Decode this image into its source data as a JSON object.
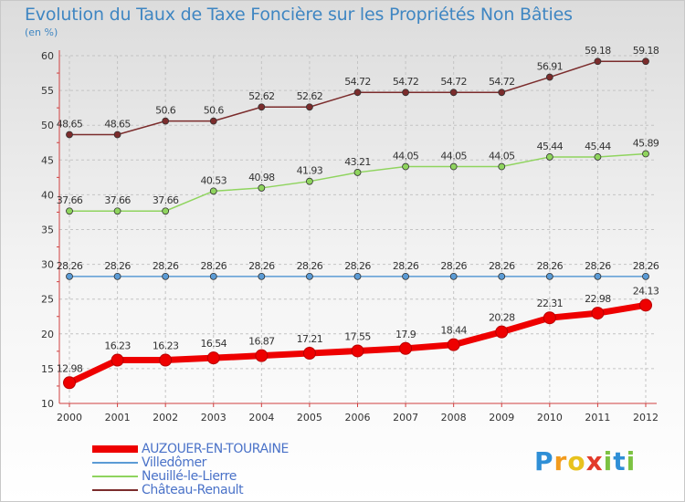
{
  "title": "Evolution du Taux de Taxe Foncière sur les Propriétés Non Bâties",
  "unit_label": "(en %)",
  "logo_letters": [
    {
      "ch": "P",
      "color": "#2f8fd6"
    },
    {
      "ch": "r",
      "color": "#f29b1d"
    },
    {
      "ch": "o",
      "color": "#e8c21d"
    },
    {
      "ch": "x",
      "color": "#e23a2a"
    },
    {
      "ch": "i",
      "color": "#7cc242"
    },
    {
      "ch": "t",
      "color": "#2f8fd6"
    },
    {
      "ch": "i",
      "color": "#7cc242"
    }
  ],
  "chart_data": {
    "type": "line",
    "title": "Evolution du Taux de Taxe Foncière sur les Propriétés Non Bâties",
    "ylabel": "(en %)",
    "xlabel": "",
    "ylim": [
      10,
      60
    ],
    "yticks": [
      10,
      15,
      20,
      25,
      30,
      35,
      40,
      45,
      50,
      55,
      60
    ],
    "grid": true,
    "legend_position": "bottom-left",
    "x": [
      "2000",
      "2001",
      "2002",
      "2003",
      "2004",
      "2005",
      "2006",
      "2007",
      "2008",
      "2009",
      "2010",
      "2011",
      "2012"
    ],
    "series": [
      {
        "name": "AUZOUER-EN-TOURAINE",
        "color": "#ee0000",
        "emphasis": true,
        "values": [
          12.98,
          16.23,
          16.23,
          16.54,
          16.87,
          17.21,
          17.55,
          17.9,
          18.44,
          20.28,
          22.31,
          22.98,
          24.13
        ],
        "labels": [
          "12.98",
          "16.23",
          "16.23",
          "16.54",
          "16.87",
          "17.21",
          "17.55",
          "17.9",
          "18.44",
          "20.28",
          "22.31",
          "22.98",
          "24.13"
        ]
      },
      {
        "name": "Villedômer",
        "color": "#5b9bd5",
        "emphasis": false,
        "values": [
          28.26,
          28.26,
          28.26,
          28.26,
          28.26,
          28.26,
          28.26,
          28.26,
          28.26,
          28.26,
          28.26,
          28.26,
          28.26
        ],
        "labels": [
          "28.26",
          "28.26",
          "28.26",
          "28.26",
          "28.26",
          "28.26",
          "28.26",
          "28.26",
          "28.26",
          "28.26",
          "28.26",
          "28.26",
          "28.26"
        ]
      },
      {
        "name": "Neuillé-le-Lierre",
        "color": "#8fd45e",
        "emphasis": false,
        "values": [
          37.66,
          37.66,
          37.66,
          40.53,
          40.98,
          41.93,
          43.21,
          44.05,
          44.05,
          44.05,
          45.44,
          45.44,
          45.89
        ],
        "labels": [
          "37.66",
          "37.66",
          "37.66",
          "40.53",
          "40.98",
          "41.93",
          "43.21",
          "44.05",
          "44.05",
          "44.05",
          "45.44",
          "45.44",
          "45.89"
        ]
      },
      {
        "name": "Château-Renault",
        "color": "#7b2c2c",
        "emphasis": false,
        "values": [
          48.65,
          48.65,
          50.6,
          50.6,
          52.62,
          52.62,
          54.72,
          54.72,
          54.72,
          54.72,
          56.91,
          59.18,
          59.18
        ],
        "labels": [
          "48.65",
          "48.65",
          "50.6",
          "50.6",
          "52.62",
          "52.62",
          "54.72",
          "54.72",
          "54.72",
          "54.72",
          "56.91",
          "59.18",
          "59.18"
        ]
      }
    ]
  }
}
